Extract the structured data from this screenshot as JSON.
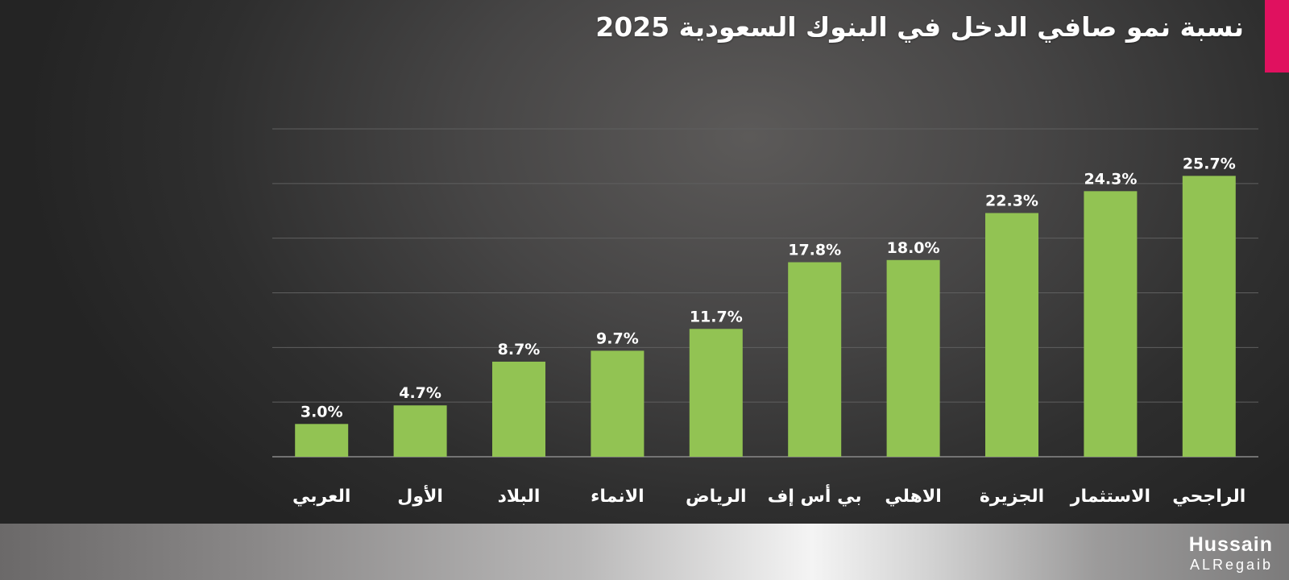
{
  "title": "نسبة نمو صافي الدخل  في البنوك السعودية 2025",
  "colors": {
    "bar": "#92c353",
    "grid": "#5f5f5f",
    "label": "#ffffff",
    "accent": "#e0115f"
  },
  "logo": {
    "line1": "Hussain",
    "line2": "ALRegaib"
  },
  "chart_data": {
    "type": "bar",
    "title": "نسبة نمو صافي الدخل  في البنوك السعودية 2025",
    "xlabel": "",
    "ylabel": "",
    "categories": [
      "العربي",
      "الأول",
      "البلاد",
      "الانماء",
      "الرياض",
      "بي أس إف",
      "الاهلي",
      "الجزيرة",
      "الاستثمار",
      "الراجحي"
    ],
    "values": [
      3.0,
      4.7,
      8.7,
      9.7,
      11.7,
      17.8,
      18.0,
      22.3,
      24.3,
      25.7
    ],
    "value_labels": [
      "3.0%",
      "4.7%",
      "8.7%",
      "9.7%",
      "11.7%",
      "17.8%",
      "18.0%",
      "22.3%",
      "24.3%",
      "25.7%"
    ],
    "ylim": [
      0,
      30
    ],
    "grid": true,
    "legend": "none"
  }
}
